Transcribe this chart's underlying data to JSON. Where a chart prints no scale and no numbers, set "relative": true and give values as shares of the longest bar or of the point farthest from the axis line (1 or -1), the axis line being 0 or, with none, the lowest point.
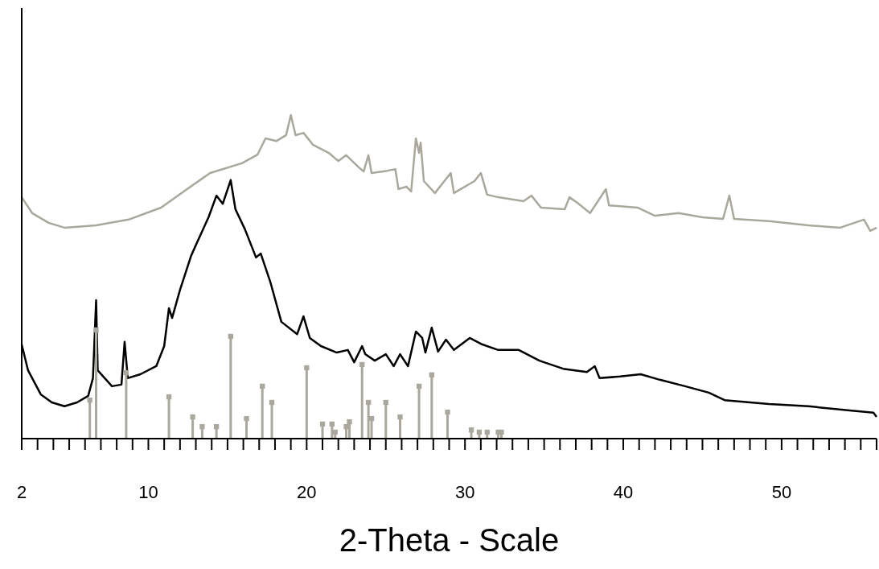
{
  "chart_data": {
    "type": "line",
    "xlabel": "2-Theta - Scale",
    "relative": true,
    "xlim": [
      2,
      56
    ],
    "xticks": [
      2,
      {
        "value": 3,
        "label": null
      },
      {
        "value": 4,
        "label": null
      },
      {
        "value": 5,
        "label": null
      },
      {
        "value": 6,
        "label": null
      },
      {
        "value": 7,
        "label": null
      },
      {
        "value": 8,
        "label": null
      },
      {
        "value": 9,
        "label": null
      },
      10,
      {
        "value": 11,
        "label": null
      },
      {
        "value": 12,
        "label": null
      },
      {
        "value": 13,
        "label": null
      },
      {
        "value": 14,
        "label": null
      },
      {
        "value": 15,
        "label": null
      },
      {
        "value": 16,
        "label": null
      },
      {
        "value": 17,
        "label": null
      },
      {
        "value": 18,
        "label": null
      },
      {
        "value": 19,
        "label": null
      },
      20,
      {
        "value": 21,
        "label": null
      },
      {
        "value": 22,
        "label": null
      },
      {
        "value": 23,
        "label": null
      },
      {
        "value": 24,
        "label": null
      },
      {
        "value": 25,
        "label": null
      },
      {
        "value": 26,
        "label": null
      },
      {
        "value": 27,
        "label": null
      },
      {
        "value": 28,
        "label": null
      },
      {
        "value": 29,
        "label": null
      },
      30,
      {
        "value": 31,
        "label": null
      },
      {
        "value": 32,
        "label": null
      },
      {
        "value": 33,
        "label": null
      },
      {
        "value": 34,
        "label": null
      },
      {
        "value": 35,
        "label": null
      },
      {
        "value": 36,
        "label": null
      },
      {
        "value": 37,
        "label": null
      },
      {
        "value": 38,
        "label": null
      },
      {
        "value": 39,
        "label": null
      },
      40,
      {
        "value": 41,
        "label": null
      },
      {
        "value": 42,
        "label": null
      },
      {
        "value": 43,
        "label": null
      },
      {
        "value": 44,
        "label": null
      },
      {
        "value": 45,
        "label": null
      },
      {
        "value": 46,
        "label": null
      },
      {
        "value": 47,
        "label": null
      },
      {
        "value": 48,
        "label": null
      },
      {
        "value": 49,
        "label": null
      },
      50,
      {
        "value": 51,
        "label": null
      },
      {
        "value": 52,
        "label": null
      },
      {
        "value": 53,
        "label": null
      },
      {
        "value": 54,
        "label": null
      },
      {
        "value": 55,
        "label": null
      },
      {
        "value": 56,
        "label": null
      }
    ],
    "grid": false,
    "series": [
      {
        "type": "line",
        "color": "#aaa89c",
        "marker": "none",
        "x": [
          2.0,
          2.66,
          3.7,
          4.7,
          6.7,
          8.75,
          10.8,
          12.3,
          13.9,
          15.9,
          16.9,
          17.4,
          18.1,
          18.7,
          19.0,
          19.3,
          19.8,
          20.4,
          21.4,
          22.0,
          22.5,
          23.3,
          23.6,
          23.9,
          24.1,
          25.1,
          25.6,
          25.8,
          26.3,
          26.6,
          26.9,
          27.1,
          27.2,
          27.4,
          28.1,
          29.1,
          29.3,
          30.6,
          31.0,
          31.4,
          32.1,
          33.7,
          34.2,
          34.8,
          36.3,
          36.6,
          37.1,
          37.9,
          38.9,
          39.1,
          40.9,
          42.0,
          43.5,
          45.0,
          46.3,
          46.7,
          47.0,
          49.2,
          51.7,
          53.7,
          55.2,
          55.6,
          56.0
        ],
        "values": [
          0.746,
          0.697,
          0.667,
          0.652,
          0.659,
          0.677,
          0.714,
          0.766,
          0.821,
          0.851,
          0.878,
          0.928,
          0.92,
          0.938,
          1.0,
          0.938,
          0.945,
          0.908,
          0.883,
          0.858,
          0.876,
          0.838,
          0.826,
          0.876,
          0.821,
          0.828,
          0.833,
          0.771,
          0.779,
          0.764,
          0.928,
          0.883,
          0.915,
          0.796,
          0.759,
          0.821,
          0.759,
          0.796,
          0.821,
          0.754,
          0.746,
          0.734,
          0.751,
          0.714,
          0.709,
          0.746,
          0.729,
          0.697,
          0.771,
          0.721,
          0.714,
          0.689,
          0.697,
          0.684,
          0.679,
          0.751,
          0.679,
          0.672,
          0.659,
          0.652,
          0.677,
          0.642,
          0.652
        ]
      },
      {
        "type": "line",
        "color": "#000000",
        "marker": "none",
        "x": [
          2.0,
          2.4,
          3.2,
          3.9,
          4.7,
          5.5,
          6.2,
          6.5,
          6.7,
          6.8,
          7.7,
          8.3,
          8.5,
          8.7,
          9.5,
          10.5,
          11.0,
          11.3,
          11.5,
          12.0,
          12.7,
          13.1,
          13.8,
          14.3,
          14.7,
          15.2,
          15.5,
          16.1,
          16.8,
          17.1,
          17.7,
          18.4,
          19.4,
          19.8,
          20.2,
          20.9,
          21.9,
          22.6,
          23.0,
          23.5,
          23.7,
          24.3,
          25.0,
          25.5,
          25.9,
          26.4,
          26.9,
          27.3,
          27.5,
          27.9,
          28.3,
          28.8,
          29.3,
          30.3,
          31.1,
          32.1,
          33.4,
          34.7,
          36.2,
          37.7,
          38.2,
          38.5,
          39.8,
          41.1,
          42.3,
          43.9,
          45.4,
          46.4,
          49.2,
          51.7,
          54.3,
          55.8,
          56.0
        ],
        "values": [
          0.291,
          0.211,
          0.137,
          0.112,
          0.1,
          0.112,
          0.132,
          0.187,
          0.428,
          0.211,
          0.162,
          0.167,
          0.299,
          0.187,
          0.199,
          0.224,
          0.286,
          0.403,
          0.373,
          0.46,
          0.565,
          0.609,
          0.684,
          0.751,
          0.726,
          0.799,
          0.709,
          0.647,
          0.56,
          0.572,
          0.485,
          0.361,
          0.323,
          0.378,
          0.311,
          0.286,
          0.266,
          0.274,
          0.236,
          0.286,
          0.261,
          0.241,
          0.261,
          0.224,
          0.261,
          0.224,
          0.331,
          0.311,
          0.266,
          0.343,
          0.269,
          0.306,
          0.274,
          0.311,
          0.291,
          0.274,
          0.274,
          0.241,
          0.216,
          0.206,
          0.224,
          0.187,
          0.192,
          0.199,
          0.182,
          0.162,
          0.142,
          0.119,
          0.107,
          0.1,
          0.087,
          0.08,
          0.067
        ]
      },
      {
        "type": "lollipop",
        "color": "#aaa89c",
        "marker": "square",
        "x": [
          6.3,
          6.7,
          8.6,
          11.3,
          12.8,
          13.4,
          14.3,
          15.2,
          16.2,
          17.2,
          17.8,
          20.0,
          21.0,
          21.6,
          21.8,
          22.5,
          22.7,
          23.5,
          23.9,
          24.1,
          25.0,
          25.9,
          27.1,
          27.9,
          28.9,
          30.4,
          30.9,
          31.4,
          32.1,
          32.3
        ],
        "values": [
          0.119,
          0.336,
          0.204,
          0.129,
          0.067,
          0.037,
          0.037,
          0.316,
          0.062,
          0.162,
          0.112,
          0.219,
          0.045,
          0.045,
          0.02,
          0.037,
          0.052,
          0.229,
          0.112,
          0.062,
          0.112,
          0.067,
          0.162,
          0.197,
          0.082,
          0.027,
          0.02,
          0.02,
          0.02,
          0.02
        ]
      }
    ]
  }
}
